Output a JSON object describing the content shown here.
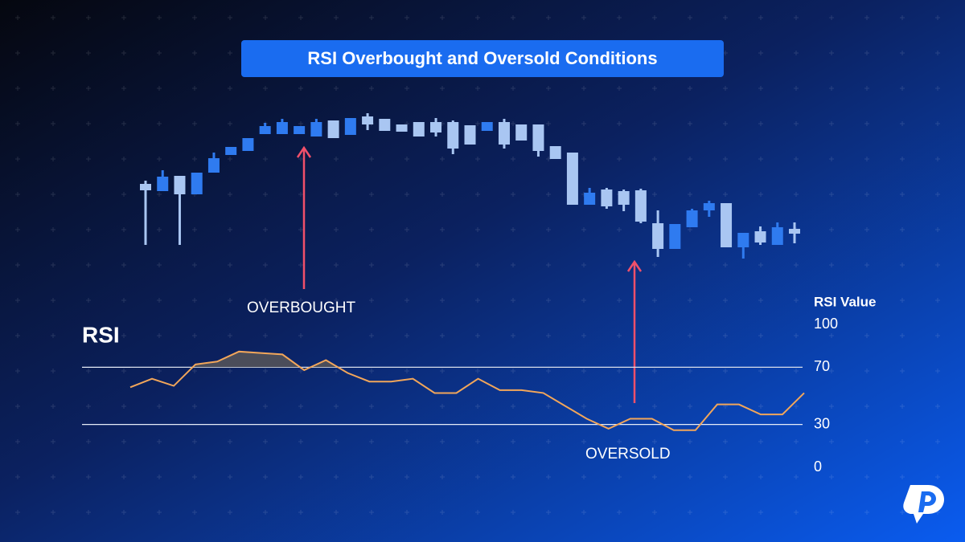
{
  "chart_data": [
    {
      "type": "candlestick",
      "title": "RSI Overbought and Oversold Conditions",
      "up_color": "#2f7bf0",
      "down_color": "#a9c6f2",
      "ylim": [
        0,
        100
      ],
      "open": [
        50.5,
        46,
        55.5,
        44,
        57.5,
        68.5,
        71,
        81.5,
        81.5,
        81.5,
        80,
        90,
        81,
        92.5,
        91,
        87.5,
        89,
        89,
        89,
        87,
        83.5,
        89,
        87.5,
        87.5,
        74,
        70,
        37.5,
        47,
        46,
        46.5,
        26,
        10,
        23.5,
        34,
        38.5,
        11,
        21,
        12.5,
        22.5
      ],
      "high": [
        52.5,
        59,
        55.5,
        57.5,
        70,
        73.5,
        79,
        88.5,
        91,
        86.5,
        91,
        90,
        91.5,
        94.5,
        91,
        87.5,
        89,
        91.5,
        90,
        87,
        89,
        91,
        87.5,
        87.5,
        74,
        70,
        48,
        48,
        47,
        47.5,
        34,
        25.5,
        35,
        40,
        38.5,
        20,
        24,
        26.5,
        26.5
      ],
      "low": [
        12.5,
        46,
        12.5,
        44,
        57.5,
        68.5,
        71,
        81.5,
        81.5,
        81.5,
        80,
        79,
        81,
        84,
        83.5,
        83,
        80,
        80,
        69,
        75,
        83.5,
        72.5,
        77.5,
        67.5,
        66,
        37.5,
        37.5,
        35,
        33.5,
        26,
        5,
        10,
        23.5,
        30,
        11,
        4,
        12.5,
        12.5,
        13.5
      ],
      "close": [
        46.5,
        55,
        44,
        57.5,
        66.5,
        73.5,
        79,
        86.5,
        89,
        86.5,
        89,
        79,
        91.5,
        87.5,
        83.5,
        83,
        80,
        82.5,
        72.5,
        75,
        89,
        75,
        77.5,
        71,
        66,
        37.5,
        45,
        36.5,
        37.5,
        27,
        10,
        25.5,
        34,
        38.5,
        11,
        20,
        14,
        23.5,
        19.5
      ],
      "annotations": [
        "OVERBOUGHT",
        "OVERSOLD"
      ]
    },
    {
      "type": "line",
      "title": "RSI",
      "y_label": "RSI Value",
      "color": "#f2a65a",
      "overbought_fill": "#4b4d5a",
      "ylim": [
        0,
        100
      ],
      "yticks": [
        100,
        70,
        30,
        0
      ],
      "reference_lines": [
        70,
        30
      ],
      "values": [
        56,
        62,
        57,
        72,
        74,
        81,
        80,
        79,
        68,
        75,
        66,
        60,
        60,
        62,
        52,
        52,
        62,
        54,
        54,
        52,
        43,
        34,
        27,
        34,
        34,
        26,
        26,
        44,
        44,
        37,
        37,
        52
      ]
    }
  ]
}
